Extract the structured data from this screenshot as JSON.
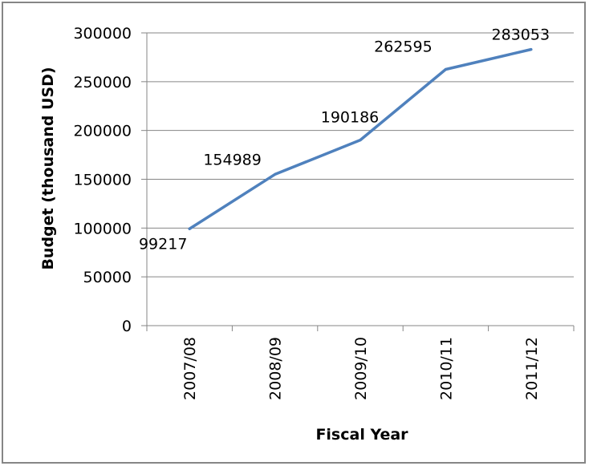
{
  "chart_data": {
    "type": "line",
    "title": "",
    "xlabel": "Fiscal Year",
    "ylabel": "Budget (thousand USD)",
    "categories": [
      "2007/08",
      "2008/09",
      "2009/10",
      "2010/11",
      "2011/12"
    ],
    "series": [
      {
        "values": [
          99217,
          154989,
          190186,
          262595,
          283053
        ],
        "color": "#4f81bd"
      }
    ],
    "data_labels": [
      "99217",
      "154989",
      "190186",
      "262595",
      "283053"
    ],
    "yticks": [
      "0",
      "50000",
      "100000",
      "150000",
      "200000",
      "250000",
      "300000"
    ],
    "ylim": [
      0,
      300000
    ],
    "grid": true,
    "legend": "none"
  }
}
